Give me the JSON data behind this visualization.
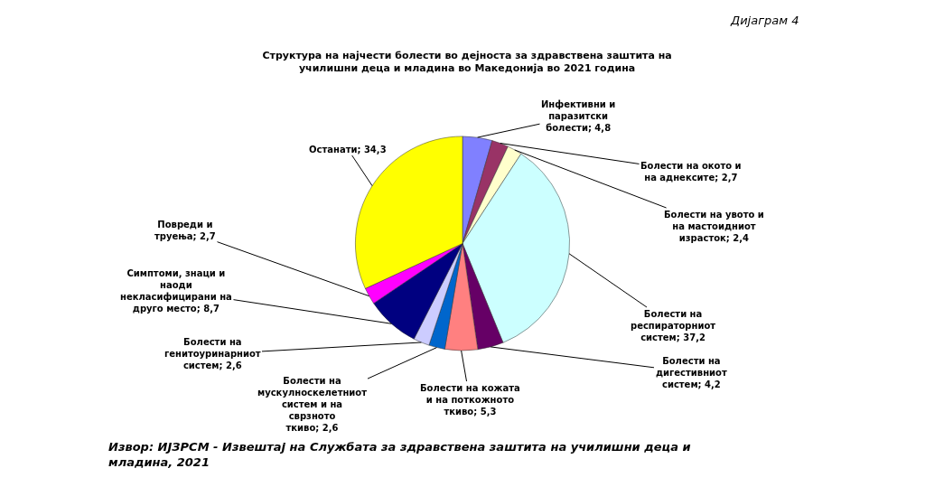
{
  "chart_data": {
    "type": "pie",
    "title": "Структура на најчести болести во дејноста за здравствена заштита на училишни деца и младина во Македонија во 2021 година",
    "categories": [
      "Инфективни и паразитски болести",
      "Болести на окото и на аднексите",
      "Болести на увото и на мастоидниот израсток",
      "Болести на респираторниот систем",
      "Болести на дигестивниот систем",
      "Болести на кожата и на поткожното ткиво",
      "Болести на мускулноскелетниот систем и на сврзното ткиво",
      "Болести на генитоуринарниот систем",
      "Симптоми, знаци и наоди некласифицирани на друго место",
      "Повреди и труења",
      "Останати"
    ],
    "values": [
      4.8,
      2.7,
      2.4,
      37.2,
      4.2,
      5.3,
      2.6,
      2.6,
      8.7,
      2.7,
      34.3
    ],
    "value_labels": [
      "4,8",
      "2,7",
      "2,4",
      "37,2",
      "4,2",
      "5,3",
      "2,6",
      "2,6",
      "8,7",
      "2,7",
      "34,3"
    ],
    "colors": [
      "#8080ff",
      "#993366",
      "#ffffcc",
      "#ccffff",
      "#660066",
      "#ff8080",
      "#0066cc",
      "#ccccff",
      "#000080",
      "#ff00ff",
      "#ffff00"
    ],
    "legend": false,
    "annotations": [
      "Дијаграм 4",
      "Извор: ИЈЗРСМ - Извештај на Службата за здравствена заштита на училишни деца и младина, 2021"
    ]
  }
}
